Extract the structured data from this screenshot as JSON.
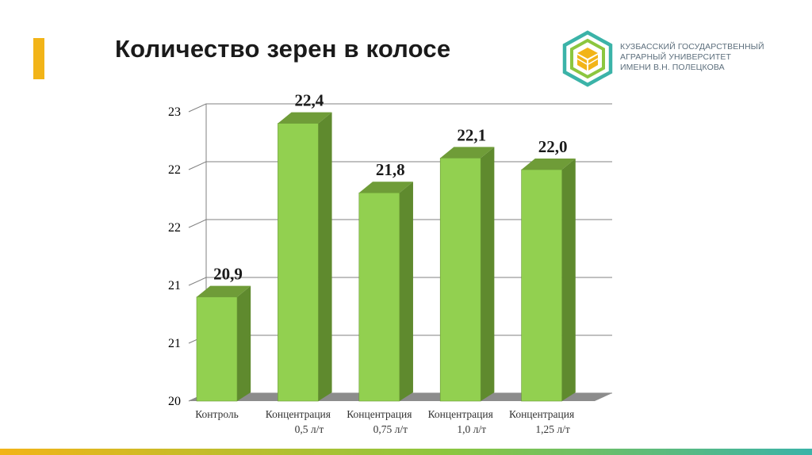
{
  "slide": {
    "title": "Количество зерен в колосе",
    "accent_color": "#f2b418"
  },
  "logo": {
    "line1": "КУЗБАССКИЙ ГОСУДАРСТВЕННЫЙ",
    "line2": "АГРАРНЫЙ УНИВЕРСИТЕТ",
    "line3": "ИМЕНИ В.Н. ПОЛЕЦКОВА",
    "colors": {
      "teal": "#3bb3a8",
      "green": "#8cc63f",
      "yellow": "#f2b418",
      "text": "#5c6e7c"
    }
  },
  "chart_data": {
    "type": "bar",
    "categories": [
      [
        "Контроль"
      ],
      [
        "Концентрация",
        "0,5 л/т"
      ],
      [
        "Концентрация",
        "0,75 л/т"
      ],
      [
        "Концентрация",
        "1,0 л/т"
      ],
      [
        "Концентрация",
        "1,25 л/т"
      ]
    ],
    "values": [
      20.9,
      22.4,
      21.8,
      22.1,
      22.0
    ],
    "data_labels": [
      "20,9",
      "22,4",
      "21,8",
      "22,1",
      "22,0"
    ],
    "ylim": [
      20,
      22.5
    ],
    "yticks": [
      20,
      20.5,
      21,
      21.5,
      22,
      22.5
    ],
    "ytick_labels": [
      "20",
      "21",
      "21",
      "22",
      "22",
      "23"
    ],
    "title": "",
    "xlabel": "",
    "ylabel": "",
    "grid": true,
    "legend": "none",
    "style": "3d-bar",
    "colors": {
      "bar_front": "#92d050",
      "bar_side": "#5f8a2e",
      "bar_top": "#6f9c38",
      "floor": "#8c8c8c",
      "grid": "#808080"
    }
  },
  "footer": {
    "stripe_colors": [
      "#f2b418",
      "#8cc63f",
      "#3bb3a8"
    ]
  }
}
